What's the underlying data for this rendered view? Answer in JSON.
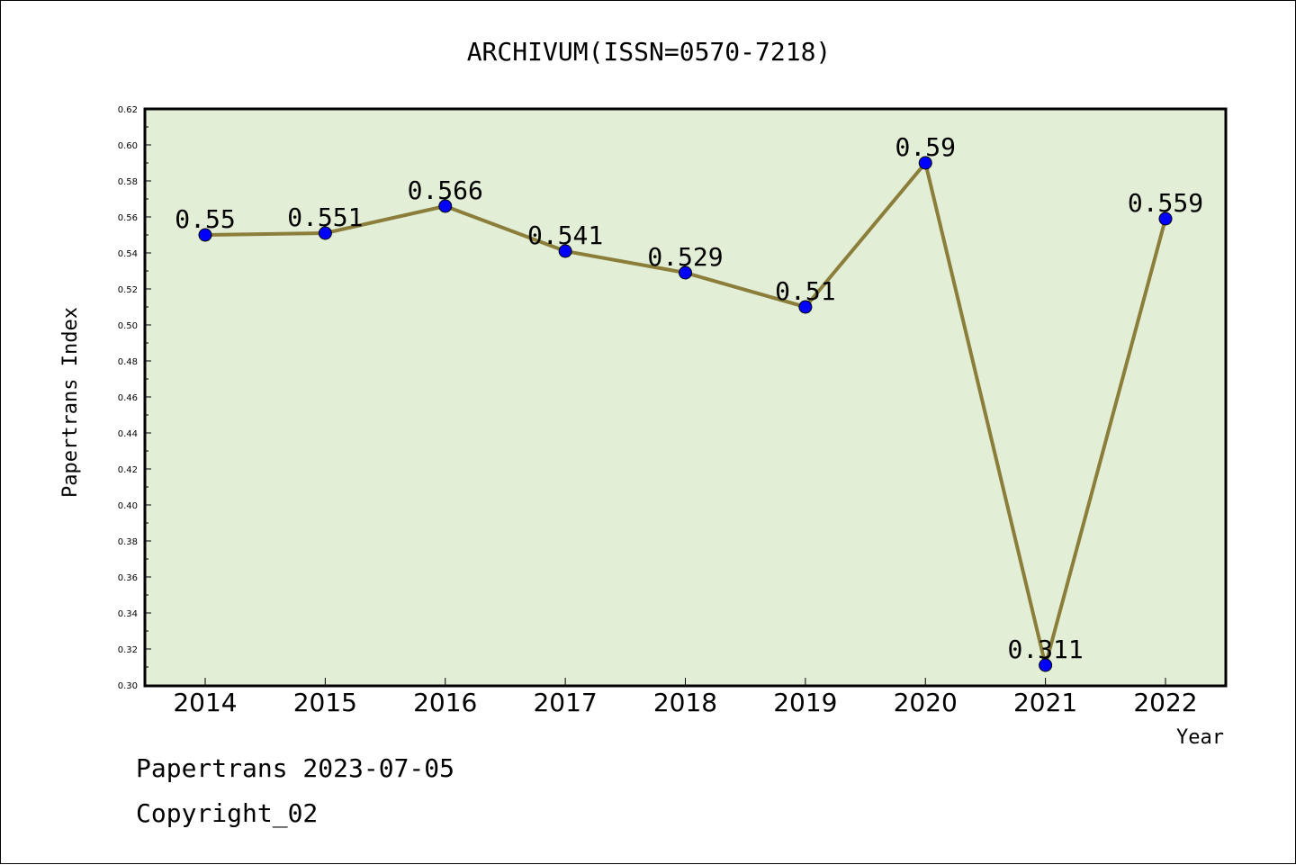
{
  "chart_data": {
    "type": "line",
    "title": "ARCHIVUM(ISSN=0570-7218)",
    "xlabel": "Year",
    "ylabel": "Papertrans Index",
    "categories": [
      "2014",
      "2015",
      "2016",
      "2017",
      "2018",
      "2019",
      "2020",
      "2021",
      "2022"
    ],
    "values": [
      0.55,
      0.551,
      0.566,
      0.541,
      0.529,
      0.51,
      0.59,
      0.311,
      0.559
    ],
    "data_labels": [
      "0.55",
      "0.551",
      "0.566",
      "0.541",
      "0.529",
      "0.51",
      "0.59",
      "0.311",
      "0.559"
    ],
    "ylim": [
      0.3,
      0.62
    ],
    "yticks": [
      "0.30",
      "0.32",
      "0.34",
      "0.36",
      "0.38",
      "0.40",
      "0.42",
      "0.44",
      "0.46",
      "0.48",
      "0.50",
      "0.52",
      "0.54",
      "0.56",
      "0.58",
      "0.60",
      "0.62"
    ],
    "grid": false,
    "legend": "none",
    "colors": {
      "line": "#8b7d3a",
      "marker": "#0000ff",
      "plot_bg": "#e2efd6"
    }
  },
  "footer": {
    "line1": "Papertrans 2023-07-05",
    "line2": "Copyright_02"
  }
}
